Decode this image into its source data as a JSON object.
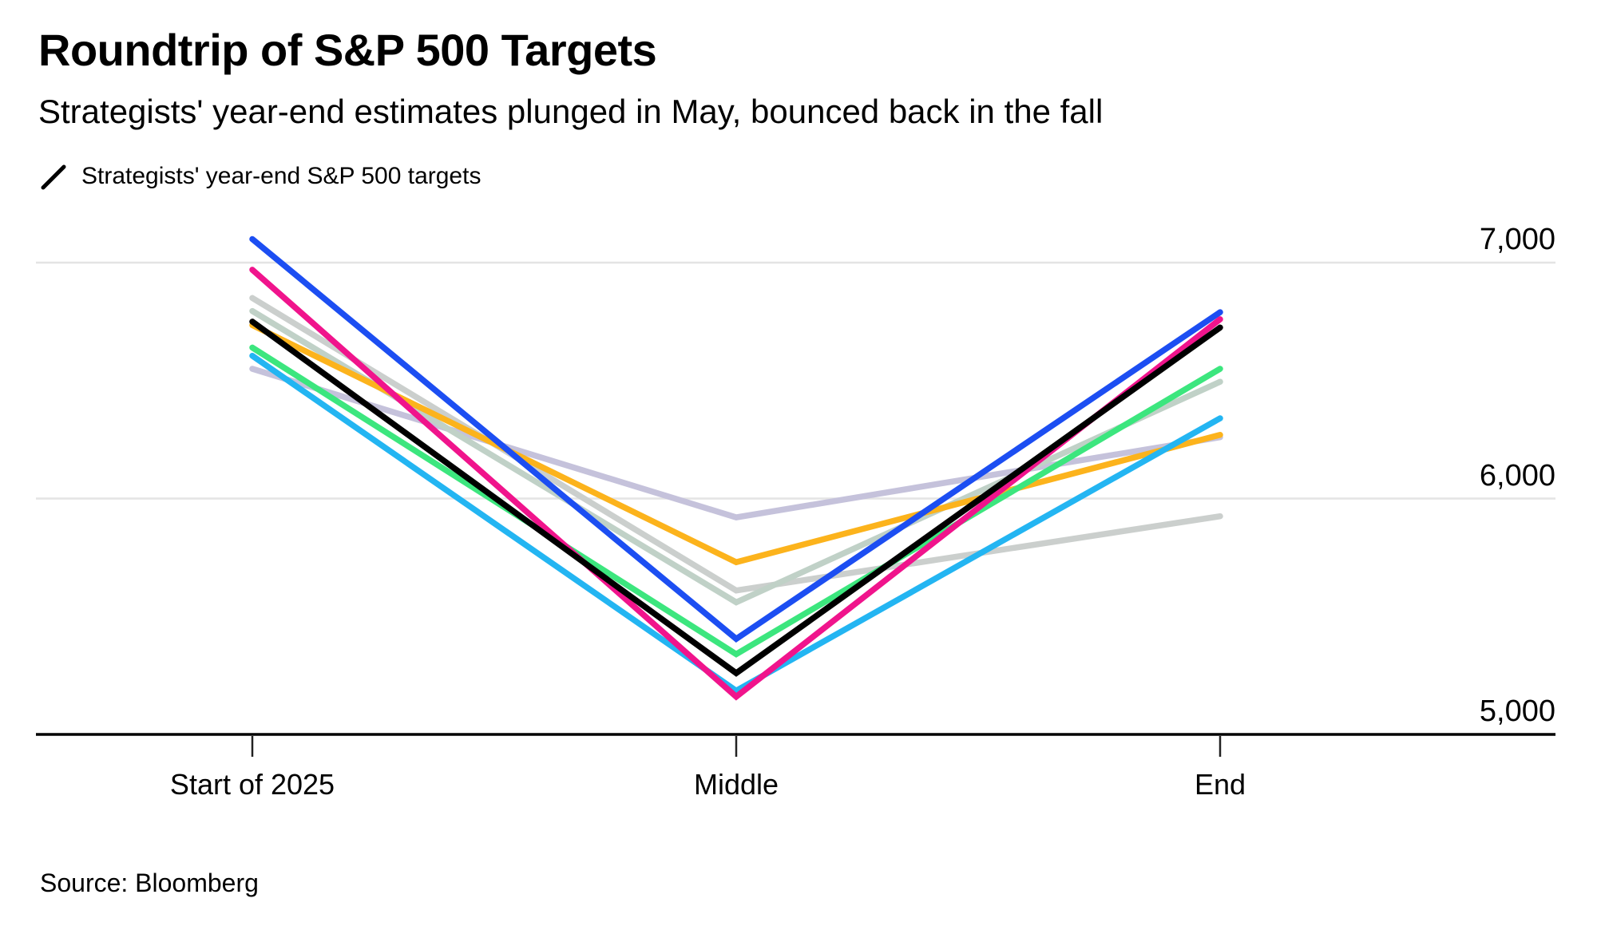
{
  "header": {
    "title": "Roundtrip of S&P 500 Targets",
    "subtitle": "Strategists' year-end estimates plunged in May, bounced back in the fall"
  },
  "legend": {
    "label": "Strategists' year-end S&P 500 targets",
    "swatch_color": "#000000"
  },
  "footer": {
    "source": "Source: Bloomberg"
  },
  "chart_data": {
    "type": "line",
    "title": "Roundtrip of S&P 500 Targets",
    "categories": [
      "Start of 2025",
      "Middle",
      "End"
    ],
    "y_axis": {
      "range": [
        5000,
        7300
      ],
      "ticks": [
        7000,
        6000,
        5000
      ],
      "tick_labels": [
        "7,000",
        "6,000",
        "5,000"
      ],
      "labels_position": "right",
      "grid": true
    },
    "grid_color": "#e4e4e4",
    "axis_color": "#000000",
    "legend_position": "top-left",
    "series": [
      {
        "name": "lavender",
        "color": "#c5c2db",
        "values": [
          6550,
          5920,
          6260
        ]
      },
      {
        "name": "light-gray",
        "color": "#cbcfcd",
        "values": [
          6850,
          5610,
          5925
        ]
      },
      {
        "name": "sage-gray",
        "color": "#c0d1c7",
        "values": [
          6795,
          5560,
          6495
        ]
      },
      {
        "name": "amber",
        "color": "#fcb31c",
        "values": [
          6735,
          5730,
          6270
        ]
      },
      {
        "name": "cyan",
        "color": "#23b5f2",
        "values": [
          6605,
          5185,
          6340
        ]
      },
      {
        "name": "green",
        "color": "#3ce67e",
        "values": [
          6640,
          5340,
          6550
        ]
      },
      {
        "name": "blue",
        "color": "#1c4ef2",
        "values": [
          7100,
          5405,
          6790
        ]
      },
      {
        "name": "magenta",
        "color": "#f0148c",
        "values": [
          6970,
          5160,
          6760
        ]
      },
      {
        "name": "black",
        "color": "#000000",
        "values": [
          6750,
          5260,
          6725
        ]
      }
    ]
  }
}
